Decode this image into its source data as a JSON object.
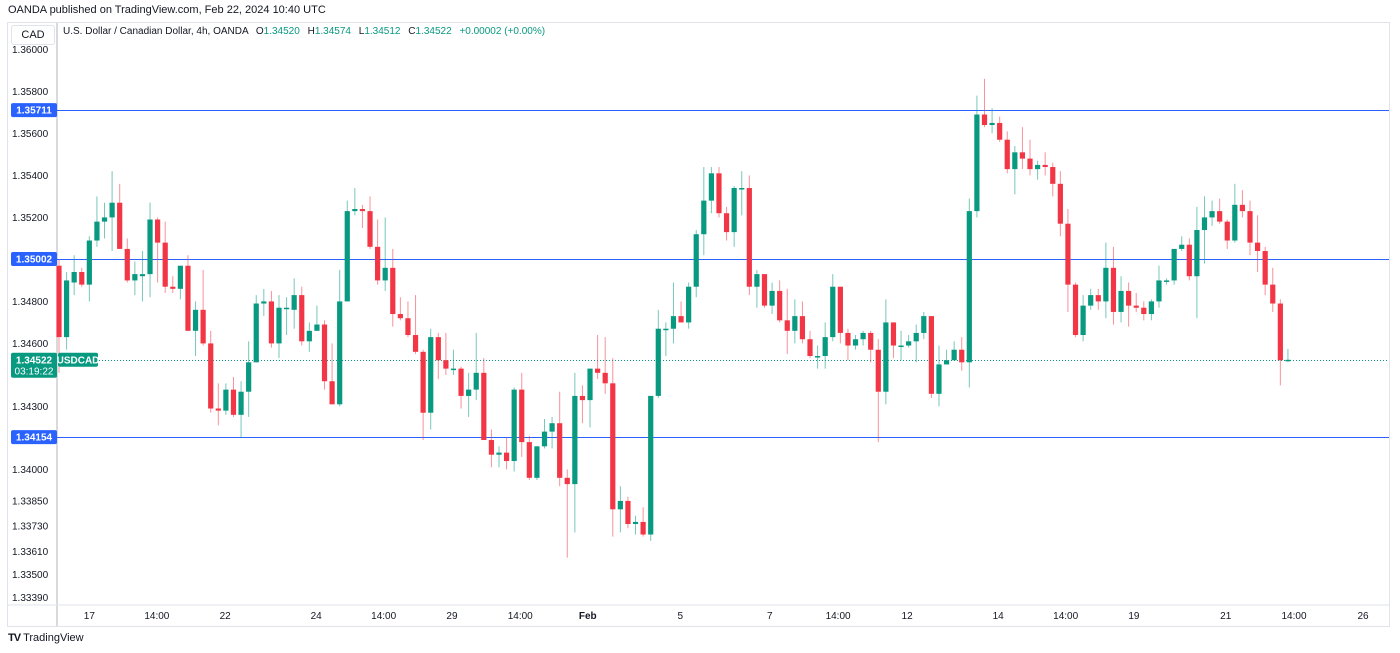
{
  "published": "OANDA published on TradingView.com, Feb 22, 2024 10:40 UTC",
  "currency_box": "CAD",
  "legend": {
    "title": "U.S. Dollar / Canadian Dollar, 4h, OANDA",
    "o_label": "O",
    "o": "1.34520",
    "h_label": "H",
    "h": "1.34574",
    "l_label": "L",
    "l": "1.34512",
    "c_label": "C",
    "c": "1.34522",
    "change": "+0.00002 (+0.00%)"
  },
  "footer": {
    "logo": "TV",
    "brand": "TradingView"
  },
  "colors": {
    "up": "#089981",
    "down": "#f23645",
    "level": "#2962ff",
    "grid_border": "#e0e3eb"
  },
  "chart_data": {
    "type": "candlestick",
    "symbol": "USDCAD",
    "title": "U.S. Dollar / Canadian Dollar, 4h, OANDA",
    "ylabel": "CAD",
    "ylim": [
      1.3338,
      1.3615
    ],
    "y_ticks": [
      "1.36000",
      "1.35800",
      "1.35600",
      "1.35400",
      "1.35200",
      "1.34800",
      "1.34600",
      "1.34300",
      "1.34000",
      "1.33850",
      "1.33730",
      "1.33610",
      "1.33500",
      "1.33390"
    ],
    "x_ticks": [
      {
        "label": "17",
        "bar": 4
      },
      {
        "label": "14:00",
        "bar": 12.9
      },
      {
        "label": "22",
        "bar": 21.9
      },
      {
        "label": "24",
        "bar": 33.9
      },
      {
        "label": "14:00",
        "bar": 42.8
      },
      {
        "label": "29",
        "bar": 51.8
      },
      {
        "label": "14:00",
        "bar": 60.8
      },
      {
        "label": "Feb",
        "bar": 69.7
      },
      {
        "label": "5",
        "bar": 81.9
      },
      {
        "label": "7",
        "bar": 93.7
      },
      {
        "label": "14:00",
        "bar": 102.7
      },
      {
        "label": "12",
        "bar": 111.8
      },
      {
        "label": "14",
        "bar": 123.8
      },
      {
        "label": "14:00",
        "bar": 132.7
      },
      {
        "label": "19",
        "bar": 141.7
      },
      {
        "label": "21",
        "bar": 153.8
      },
      {
        "label": "14:00",
        "bar": 162.8
      },
      {
        "label": "26",
        "bar": 171.9
      }
    ],
    "levels": [
      {
        "price": 1.35711,
        "label": "1.35711"
      },
      {
        "price": 1.35002,
        "label": "1.35002"
      },
      {
        "price": 1.34154,
        "label": "1.34154"
      }
    ],
    "last_price": {
      "price": 1.34522,
      "label": "1.34522",
      "countdown": "03:19:22",
      "tag": "USDCAD"
    },
    "ohlc": [
      [
        1.3497,
        1.35,
        1.3446,
        1.3463
      ],
      [
        1.3463,
        1.3494,
        1.3457,
        1.349
      ],
      [
        1.3489,
        1.3502,
        1.3483,
        1.3494
      ],
      [
        1.3494,
        1.3496,
        1.3487,
        1.3488
      ],
      [
        1.3488,
        1.3511,
        1.348,
        1.3509
      ],
      [
        1.3509,
        1.353,
        1.3506,
        1.3518
      ],
      [
        1.3518,
        1.3527,
        1.351,
        1.352
      ],
      [
        1.352,
        1.3542,
        1.3504,
        1.3527
      ],
      [
        1.3527,
        1.3536,
        1.3505,
        1.3505
      ],
      [
        1.3505,
        1.351,
        1.3489,
        1.349
      ],
      [
        1.349,
        1.3499,
        1.3483,
        1.3493
      ],
      [
        1.3492,
        1.3504,
        1.348,
        1.3493
      ],
      [
        1.3493,
        1.3527,
        1.3482,
        1.3519
      ],
      [
        1.3519,
        1.352,
        1.3489,
        1.3508
      ],
      [
        1.3508,
        1.3518,
        1.3484,
        1.3487
      ],
      [
        1.3487,
        1.3492,
        1.3484,
        1.3486
      ],
      [
        1.3486,
        1.3497,
        1.3481,
        1.3497
      ],
      [
        1.3497,
        1.3502,
        1.3466,
        1.3466
      ],
      [
        1.3466,
        1.348,
        1.3454,
        1.3476
      ],
      [
        1.3476,
        1.3495,
        1.3459,
        1.346
      ],
      [
        1.346,
        1.3466,
        1.3427,
        1.3429
      ],
      [
        1.3429,
        1.3441,
        1.3421,
        1.3428
      ],
      [
        1.3428,
        1.3441,
        1.3426,
        1.3438
      ],
      [
        1.3438,
        1.3444,
        1.3425,
        1.3426
      ],
      [
        1.3426,
        1.3442,
        1.3415,
        1.3437
      ],
      [
        1.3437,
        1.3461,
        1.3425,
        1.3451
      ],
      [
        1.3451,
        1.3483,
        1.3451,
        1.3479
      ],
      [
        1.3479,
        1.3486,
        1.3473,
        1.348
      ],
      [
        1.348,
        1.3485,
        1.3458,
        1.346
      ],
      [
        1.346,
        1.3483,
        1.3453,
        1.3477
      ],
      [
        1.3477,
        1.3482,
        1.3464,
        1.3477
      ],
      [
        1.3476,
        1.3491,
        1.3467,
        1.3483
      ],
      [
        1.3483,
        1.3487,
        1.3459,
        1.3461
      ],
      [
        1.3461,
        1.347,
        1.3456,
        1.3466
      ],
      [
        1.3466,
        1.3478,
        1.3466,
        1.3469
      ],
      [
        1.3469,
        1.3471,
        1.3438,
        1.3442
      ],
      [
        1.3442,
        1.346,
        1.3431,
        1.3431
      ],
      [
        1.3431,
        1.3495,
        1.343,
        1.348
      ],
      [
        1.348,
        1.3528,
        1.348,
        1.3523
      ],
      [
        1.3523,
        1.3534,
        1.3521,
        1.3524
      ],
      [
        1.3524,
        1.3526,
        1.3515,
        1.3523
      ],
      [
        1.3523,
        1.353,
        1.3505,
        1.3506
      ],
      [
        1.3506,
        1.3519,
        1.3488,
        1.349
      ],
      [
        1.349,
        1.352,
        1.3485,
        1.3496
      ],
      [
        1.3496,
        1.3505,
        1.3468,
        1.3474
      ],
      [
        1.3474,
        1.3482,
        1.3471,
        1.3472
      ],
      [
        1.3472,
        1.348,
        1.3463,
        1.3464
      ],
      [
        1.3464,
        1.3483,
        1.3455,
        1.3456
      ],
      [
        1.3456,
        1.3457,
        1.3414,
        1.3427
      ],
      [
        1.3427,
        1.3467,
        1.3419,
        1.3463
      ],
      [
        1.3463,
        1.3465,
        1.3443,
        1.3452
      ],
      [
        1.3452,
        1.3465,
        1.3445,
        1.3448
      ],
      [
        1.3448,
        1.3457,
        1.3445,
        1.3448
      ],
      [
        1.3448,
        1.3449,
        1.3429,
        1.3435
      ],
      [
        1.3435,
        1.3446,
        1.3425,
        1.3438
      ],
      [
        1.3438,
        1.3465,
        1.3433,
        1.3446
      ],
      [
        1.3446,
        1.3453,
        1.3414,
        1.3414
      ],
      [
        1.3414,
        1.3419,
        1.3401,
        1.3407
      ],
      [
        1.3407,
        1.3411,
        1.3401,
        1.3408
      ],
      [
        1.3408,
        1.3415,
        1.34,
        1.3404
      ],
      [
        1.3404,
        1.3439,
        1.3399,
        1.3438
      ],
      [
        1.3438,
        1.3446,
        1.3406,
        1.3413
      ],
      [
        1.3413,
        1.3416,
        1.3395,
        1.3396
      ],
      [
        1.3396,
        1.3411,
        1.3395,
        1.3411
      ],
      [
        1.3411,
        1.3424,
        1.341,
        1.3418
      ],
      [
        1.3418,
        1.3425,
        1.341,
        1.3422
      ],
      [
        1.3422,
        1.3437,
        1.3392,
        1.3396
      ],
      [
        1.3396,
        1.34,
        1.3358,
        1.3393
      ],
      [
        1.3393,
        1.3446,
        1.337,
        1.3435
      ],
      [
        1.3435,
        1.344,
        1.3422,
        1.3433
      ],
      [
        1.3433,
        1.3448,
        1.342,
        1.3448
      ],
      [
        1.3448,
        1.3464,
        1.3443,
        1.3446
      ],
      [
        1.3446,
        1.3463,
        1.3436,
        1.3441
      ],
      [
        1.3441,
        1.3453,
        1.3368,
        1.3381
      ],
      [
        1.3381,
        1.3392,
        1.337,
        1.3385
      ],
      [
        1.3385,
        1.3387,
        1.3372,
        1.3374
      ],
      [
        1.3374,
        1.3378,
        1.3369,
        1.3375
      ],
      [
        1.3375,
        1.3382,
        1.3368,
        1.3369
      ],
      [
        1.3369,
        1.3435,
        1.3366,
        1.3435
      ],
      [
        1.3435,
        1.3476,
        1.3434,
        1.3467
      ],
      [
        1.3467,
        1.347,
        1.3454,
        1.3467
      ],
      [
        1.3467,
        1.3489,
        1.346,
        1.3473
      ],
      [
        1.3473,
        1.348,
        1.347,
        1.347
      ],
      [
        1.347,
        1.3489,
        1.3467,
        1.3487
      ],
      [
        1.3487,
        1.3514,
        1.3482,
        1.3512
      ],
      [
        1.3512,
        1.3544,
        1.3502,
        1.3528
      ],
      [
        1.3528,
        1.3544,
        1.3522,
        1.3541
      ],
      [
        1.3541,
        1.3544,
        1.352,
        1.3522
      ],
      [
        1.3522,
        1.3525,
        1.3509,
        1.3513
      ],
      [
        1.3513,
        1.3535,
        1.3506,
        1.3534
      ],
      [
        1.3534,
        1.3542,
        1.3521,
        1.3534
      ],
      [
        1.3534,
        1.354,
        1.3483,
        1.3487
      ],
      [
        1.3487,
        1.3495,
        1.3477,
        1.3493
      ],
      [
        1.3493,
        1.3493,
        1.3477,
        1.3478
      ],
      [
        1.3478,
        1.3489,
        1.3474,
        1.3485
      ],
      [
        1.3485,
        1.349,
        1.347,
        1.3471
      ],
      [
        1.3471,
        1.3486,
        1.3455,
        1.3466
      ],
      [
        1.3466,
        1.3481,
        1.346,
        1.3473
      ],
      [
        1.3473,
        1.348,
        1.346,
        1.3462
      ],
      [
        1.3462,
        1.3466,
        1.3453,
        1.3454
      ],
      [
        1.3454,
        1.3459,
        1.3448,
        1.3454
      ],
      [
        1.3454,
        1.347,
        1.3448,
        1.3463
      ],
      [
        1.3463,
        1.3493,
        1.3461,
        1.3487
      ],
      [
        1.3487,
        1.3487,
        1.346,
        1.3465
      ],
      [
        1.3465,
        1.3467,
        1.3452,
        1.3459
      ],
      [
        1.3459,
        1.3464,
        1.3457,
        1.3462
      ],
      [
        1.3462,
        1.3466,
        1.3459,
        1.3465
      ],
      [
        1.3465,
        1.3466,
        1.3451,
        1.3457
      ],
      [
        1.3457,
        1.3462,
        1.3413,
        1.3437
      ],
      [
        1.3437,
        1.3481,
        1.3431,
        1.347
      ],
      [
        1.347,
        1.347,
        1.3453,
        1.3459
      ],
      [
        1.3459,
        1.3466,
        1.3452,
        1.3459
      ],
      [
        1.3459,
        1.3464,
        1.3458,
        1.3461
      ],
      [
        1.3461,
        1.3469,
        1.3451,
        1.3465
      ],
      [
        1.3465,
        1.3475,
        1.3462,
        1.3473
      ],
      [
        1.3473,
        1.3473,
        1.3434,
        1.3436
      ],
      [
        1.3436,
        1.3459,
        1.343,
        1.345
      ],
      [
        1.345,
        1.3457,
        1.345,
        1.3452
      ],
      [
        1.3452,
        1.3461,
        1.3452,
        1.3457
      ],
      [
        1.3457,
        1.3463,
        1.3447,
        1.3451
      ],
      [
        1.3451,
        1.3529,
        1.3439,
        1.3523
      ],
      [
        1.3523,
        1.3578,
        1.352,
        1.3569
      ],
      [
        1.3569,
        1.3586,
        1.3563,
        1.3564
      ],
      [
        1.3564,
        1.3572,
        1.356,
        1.3565
      ],
      [
        1.3565,
        1.3568,
        1.3556,
        1.3557
      ],
      [
        1.3557,
        1.3561,
        1.3541,
        1.3543
      ],
      [
        1.3543,
        1.3554,
        1.3531,
        1.3551
      ],
      [
        1.3551,
        1.3563,
        1.3543,
        1.3548
      ],
      [
        1.3548,
        1.3557,
        1.354,
        1.3543
      ],
      [
        1.3543,
        1.3547,
        1.3538,
        1.3545
      ],
      [
        1.3545,
        1.3551,
        1.354,
        1.3544
      ],
      [
        1.3544,
        1.3546,
        1.353,
        1.3536
      ],
      [
        1.3536,
        1.3542,
        1.3511,
        1.3517
      ],
      [
        1.3517,
        1.3524,
        1.3475,
        1.3488
      ],
      [
        1.3488,
        1.3489,
        1.3463,
        1.3464
      ],
      [
        1.3464,
        1.3483,
        1.3461,
        1.3478
      ],
      [
        1.3478,
        1.3486,
        1.3476,
        1.3483
      ],
      [
        1.3483,
        1.3486,
        1.3476,
        1.348
      ],
      [
        1.348,
        1.3508,
        1.3472,
        1.3496
      ],
      [
        1.3496,
        1.3506,
        1.3469,
        1.3475
      ],
      [
        1.3475,
        1.3492,
        1.347,
        1.3485
      ],
      [
        1.3485,
        1.3489,
        1.3468,
        1.3478
      ],
      [
        1.3478,
        1.3484,
        1.3475,
        1.3477
      ],
      [
        1.3477,
        1.348,
        1.3471,
        1.3474
      ],
      [
        1.3474,
        1.3481,
        1.3471,
        1.348
      ],
      [
        1.348,
        1.3497,
        1.3477,
        1.349
      ],
      [
        1.349,
        1.3491,
        1.3488,
        1.349
      ],
      [
        1.349,
        1.3505,
        1.3488,
        1.3505
      ],
      [
        1.3505,
        1.3511,
        1.3504,
        1.3507
      ],
      [
        1.3507,
        1.351,
        1.349,
        1.3492
      ],
      [
        1.3492,
        1.3525,
        1.3472,
        1.3514
      ],
      [
        1.3514,
        1.353,
        1.3498,
        1.352
      ],
      [
        1.352,
        1.3528,
        1.3516,
        1.3523
      ],
      [
        1.3523,
        1.3529,
        1.3517,
        1.3518
      ],
      [
        1.3518,
        1.3519,
        1.3505,
        1.3509
      ],
      [
        1.3509,
        1.3536,
        1.3508,
        1.3526
      ],
      [
        1.3526,
        1.3533,
        1.352,
        1.3523
      ],
      [
        1.3523,
        1.3528,
        1.3502,
        1.3508
      ],
      [
        1.3508,
        1.3521,
        1.3494,
        1.3504
      ],
      [
        1.3504,
        1.3506,
        1.3483,
        1.3488
      ],
      [
        1.3488,
        1.3496,
        1.3475,
        1.3479
      ],
      [
        1.3479,
        1.3481,
        1.344,
        1.3452
      ],
      [
        1.3452,
        1.34574,
        1.34512,
        1.34522
      ]
    ]
  }
}
